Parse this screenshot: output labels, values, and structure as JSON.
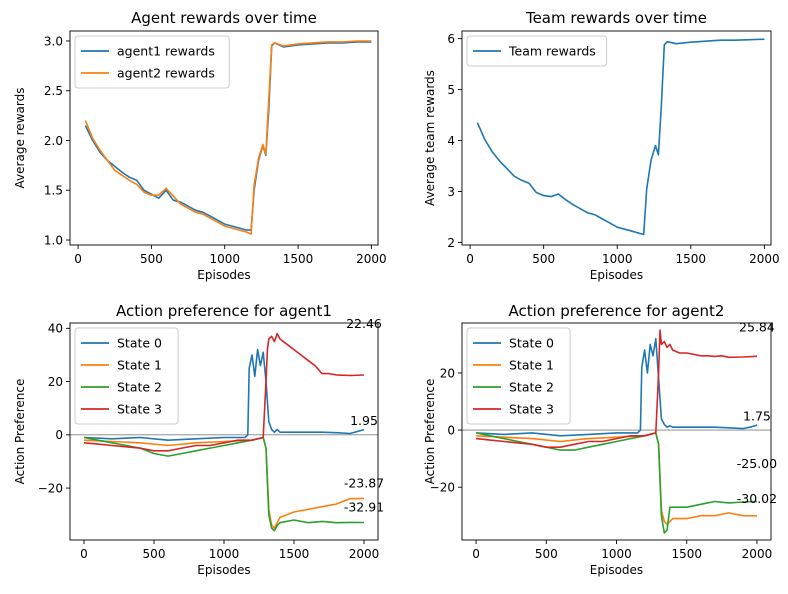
{
  "colors": {
    "series": [
      "#1f77b4",
      "#ff7f0e",
      "#2ca02c",
      "#d62728"
    ],
    "zero_line": "#808080",
    "axis": "#000000"
  },
  "chart_data": [
    {
      "type": "line",
      "title": "Agent rewards over time",
      "xlabel": "Episodes",
      "ylabel": "Average rewards",
      "xlim": [
        -55,
        2045
      ],
      "ylim": [
        0.95,
        3.1
      ],
      "xticks": [
        0,
        500,
        1000,
        1500,
        2000
      ],
      "yticks": [
        1.0,
        1.5,
        2.0,
        2.5,
        3.0
      ],
      "ytick_labels": [
        "1.0",
        "1.5",
        "2.0",
        "2.5",
        "3.0"
      ],
      "legend_position": "upper-left",
      "series": [
        {
          "name": "agent1 rewards",
          "x": [
            50,
            100,
            150,
            200,
            250,
            300,
            350,
            400,
            450,
            500,
            550,
            600,
            650,
            700,
            750,
            800,
            850,
            900,
            950,
            1000,
            1050,
            1100,
            1150,
            1180,
            1200,
            1230,
            1260,
            1280,
            1300,
            1320,
            1340,
            1400,
            1500,
            1600,
            1700,
            1800,
            1900,
            2000
          ],
          "y": [
            2.15,
            2.0,
            1.88,
            1.8,
            1.74,
            1.68,
            1.63,
            1.6,
            1.5,
            1.46,
            1.42,
            1.5,
            1.4,
            1.38,
            1.34,
            1.3,
            1.28,
            1.24,
            1.2,
            1.16,
            1.14,
            1.12,
            1.1,
            1.1,
            1.5,
            1.8,
            1.95,
            1.85,
            2.3,
            2.95,
            2.98,
            2.94,
            2.96,
            2.97,
            2.98,
            2.98,
            2.99,
            2.99
          ]
        },
        {
          "name": "agent2 rewards",
          "x": [
            50,
            100,
            150,
            200,
            250,
            300,
            350,
            400,
            450,
            500,
            550,
            600,
            650,
            700,
            750,
            800,
            850,
            900,
            950,
            1000,
            1050,
            1100,
            1150,
            1180,
            1200,
            1230,
            1260,
            1280,
            1300,
            1320,
            1340,
            1400,
            1500,
            1600,
            1700,
            1800,
            1900,
            2000
          ],
          "y": [
            2.2,
            2.02,
            1.9,
            1.8,
            1.7,
            1.65,
            1.6,
            1.56,
            1.48,
            1.45,
            1.45,
            1.52,
            1.44,
            1.36,
            1.32,
            1.28,
            1.26,
            1.22,
            1.18,
            1.14,
            1.12,
            1.1,
            1.08,
            1.06,
            1.55,
            1.82,
            1.96,
            1.86,
            2.4,
            2.96,
            2.98,
            2.95,
            2.97,
            2.98,
            2.99,
            2.99,
            3.0,
            3.0
          ]
        }
      ]
    },
    {
      "type": "line",
      "title": "Team rewards over time",
      "xlabel": "Episodes",
      "ylabel": "Average team rewards",
      "xlim": [
        -55,
        2045
      ],
      "ylim": [
        1.95,
        6.15
      ],
      "xticks": [
        0,
        500,
        1000,
        1500,
        2000
      ],
      "yticks": [
        2,
        3,
        4,
        5,
        6
      ],
      "ytick_labels": [
        "2",
        "3",
        "4",
        "5",
        "6"
      ],
      "legend_position": "upper-left",
      "series": [
        {
          "name": "Team rewards",
          "x": [
            50,
            100,
            150,
            200,
            250,
            300,
            350,
            400,
            450,
            500,
            550,
            600,
            650,
            700,
            750,
            800,
            850,
            900,
            950,
            1000,
            1050,
            1100,
            1150,
            1180,
            1200,
            1230,
            1260,
            1280,
            1300,
            1320,
            1340,
            1400,
            1500,
            1600,
            1700,
            1800,
            1900,
            2000
          ],
          "y": [
            4.35,
            4.02,
            3.78,
            3.6,
            3.45,
            3.3,
            3.22,
            3.16,
            2.98,
            2.92,
            2.9,
            2.95,
            2.84,
            2.74,
            2.66,
            2.58,
            2.54,
            2.46,
            2.38,
            2.3,
            2.26,
            2.22,
            2.18,
            2.16,
            3.05,
            3.62,
            3.9,
            3.72,
            4.7,
            5.88,
            5.94,
            5.9,
            5.93,
            5.95,
            5.97,
            5.97,
            5.98,
            5.99
          ]
        }
      ]
    },
    {
      "type": "line",
      "title": "Action preference for agent1",
      "xlabel": "Episodes",
      "ylabel": "Action Preference",
      "xlim": [
        -100,
        2100
      ],
      "ylim": [
        -39.5,
        42
      ],
      "xticks": [
        0,
        500,
        1000,
        1500,
        2000
      ],
      "yticks": [
        -20,
        0,
        20,
        40
      ],
      "ytick_labels": [
        "−20",
        "0",
        "20",
        "40"
      ],
      "zero_line": true,
      "legend_position": "upper-left",
      "series": [
        {
          "name": "State 0",
          "x": [
            0,
            200,
            400,
            600,
            800,
            1000,
            1150,
            1170,
            1180,
            1200,
            1220,
            1240,
            1260,
            1280,
            1300,
            1320,
            1340,
            1360,
            1380,
            1400,
            1500,
            1600,
            1700,
            1800,
            1900,
            1950,
            2000
          ],
          "y": [
            -1,
            -1.5,
            -1,
            -2,
            -1.5,
            -1,
            -1,
            0,
            25,
            30,
            22,
            32,
            26,
            31,
            20,
            5,
            2,
            1,
            2,
            1,
            1,
            1,
            1,
            0.8,
            0.5,
            1.2,
            1.95
          ]
        },
        {
          "name": "State 1",
          "x": [
            0,
            200,
            400,
            600,
            800,
            1000,
            1200,
            1280,
            1300,
            1320,
            1340,
            1360,
            1380,
            1400,
            1500,
            1600,
            1700,
            1800,
            1900,
            2000
          ],
          "y": [
            -2,
            -2.5,
            -3,
            -4,
            -3,
            -2.5,
            -2,
            -1,
            -5,
            -28,
            -34,
            -35,
            -33,
            -31,
            -29,
            -28,
            -27,
            -26,
            -24,
            -23.87
          ]
        },
        {
          "name": "State 2",
          "x": [
            0,
            100,
            200,
            300,
            400,
            500,
            600,
            700,
            800,
            900,
            1000,
            1100,
            1200,
            1280,
            1300,
            1320,
            1340,
            1360,
            1380,
            1400,
            1500,
            1600,
            1700,
            1800,
            1900,
            2000
          ],
          "y": [
            -1,
            -2,
            -3,
            -4,
            -5,
            -7,
            -8,
            -7,
            -6,
            -5,
            -4,
            -3,
            -2,
            -1,
            -5,
            -30,
            -35,
            -36,
            -34,
            -33,
            -32,
            -33,
            -32.5,
            -33,
            -32.9,
            -32.91
          ]
        },
        {
          "name": "State 3",
          "x": [
            0,
            100,
            200,
            300,
            400,
            500,
            600,
            700,
            800,
            900,
            1000,
            1100,
            1200,
            1280,
            1300,
            1310,
            1320,
            1340,
            1360,
            1380,
            1400,
            1450,
            1500,
            1550,
            1600,
            1650,
            1700,
            1750,
            1800,
            1900,
            2000
          ],
          "y": [
            -3,
            -3.5,
            -4,
            -4.5,
            -5,
            -6,
            -6,
            -5,
            -4,
            -4,
            -3,
            -2,
            -2,
            -1,
            20,
            32,
            36,
            37,
            35,
            38,
            36,
            34,
            32,
            30,
            28,
            26,
            23,
            23,
            22.5,
            22.3,
            22.46
          ]
        }
      ],
      "annotations": [
        "22.46",
        "1.95",
        "-23.87",
        "-32.91"
      ]
    },
    {
      "type": "line",
      "title": "Action preference for agent2",
      "xlabel": "Episodes",
      "ylabel": "Action Preference",
      "xlim": [
        -100,
        2100
      ],
      "ylim": [
        -38.5,
        37.5
      ],
      "xticks": [
        0,
        500,
        1000,
        1500,
        2000
      ],
      "yticks": [
        -20,
        0,
        20
      ],
      "ytick_labels": [
        "−20",
        "0",
        "20"
      ],
      "zero_line": true,
      "legend_position": "upper-left",
      "series": [
        {
          "name": "State 0",
          "x": [
            0,
            200,
            400,
            600,
            800,
            1000,
            1150,
            1170,
            1180,
            1200,
            1220,
            1240,
            1260,
            1280,
            1300,
            1320,
            1340,
            1360,
            1380,
            1400,
            1500,
            1600,
            1700,
            1800,
            1900,
            1950,
            2000
          ],
          "y": [
            -1,
            -1.5,
            -1,
            -2,
            -1.5,
            -1,
            -1,
            0,
            22,
            28,
            20,
            30,
            26,
            32,
            18,
            4,
            2,
            1,
            1.5,
            1,
            1,
            1,
            1,
            0.8,
            0.5,
            1.0,
            1.75
          ]
        },
        {
          "name": "State 1",
          "x": [
            0,
            200,
            400,
            600,
            800,
            1000,
            1200,
            1280,
            1300,
            1320,
            1340,
            1360,
            1380,
            1400,
            1500,
            1600,
            1700,
            1800,
            1900,
            2000
          ],
          "y": [
            -2,
            -2.5,
            -3,
            -4,
            -3,
            -2.5,
            -2,
            -1,
            -5,
            -28,
            -32,
            -33,
            -32,
            -31,
            -31,
            -30,
            -30,
            -29,
            -30,
            -30.02
          ]
        },
        {
          "name": "State 2",
          "x": [
            0,
            100,
            200,
            300,
            400,
            500,
            600,
            700,
            800,
            900,
            1000,
            1100,
            1200,
            1280,
            1300,
            1320,
            1340,
            1360,
            1380,
            1400,
            1500,
            1600,
            1700,
            1800,
            1900,
            2000
          ],
          "y": [
            -1,
            -2,
            -3,
            -4,
            -5,
            -6,
            -7,
            -7,
            -6,
            -5,
            -4,
            -3,
            -2,
            -1,
            -5,
            -30,
            -36,
            -35,
            -27,
            -27,
            -27,
            -26,
            -25,
            -25.5,
            -25.2,
            -25.0
          ]
        },
        {
          "name": "State 3",
          "x": [
            0,
            100,
            200,
            300,
            400,
            500,
            600,
            700,
            800,
            900,
            1000,
            1100,
            1200,
            1280,
            1300,
            1310,
            1320,
            1340,
            1360,
            1380,
            1400,
            1450,
            1500,
            1550,
            1600,
            1650,
            1700,
            1750,
            1800,
            1900,
            2000
          ],
          "y": [
            -3,
            -3.5,
            -4,
            -4.5,
            -5,
            -6,
            -6,
            -5,
            -4,
            -4,
            -3,
            -2,
            -2,
            -1,
            20,
            35,
            30,
            31,
            29,
            30,
            28,
            27,
            27,
            26.5,
            26,
            26,
            25.8,
            26,
            25.5,
            25.6,
            25.84
          ]
        }
      ],
      "annotations": [
        "25.84",
        "1.75",
        "-25.00",
        "-30.02"
      ]
    }
  ]
}
